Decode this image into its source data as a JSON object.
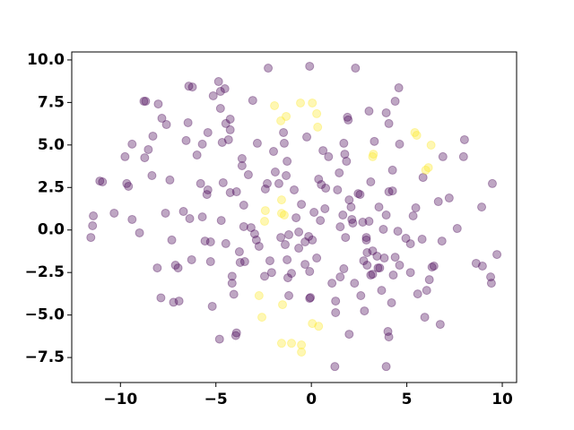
{
  "chart_data": {
    "type": "scatter",
    "xlim": [
      -12.55,
      10.75
    ],
    "ylim": [
      -8.97,
      10.47
    ],
    "xticks": [
      {
        "value": -10,
        "label": "−10"
      },
      {
        "value": -5,
        "label": "−5"
      },
      0,
      5,
      10
    ],
    "yticks": [
      {
        "value": -7.5,
        "label": "−7.5"
      },
      {
        "value": -5,
        "label": "−5.0"
      },
      {
        "value": -2.5,
        "label": "−2.5"
      },
      {
        "value": 0,
        "label": "0.0"
      },
      {
        "value": 2.5,
        "label": "2.5"
      },
      {
        "value": 5,
        "label": "5.0"
      },
      {
        "value": 7.5,
        "label": "7.5"
      },
      {
        "value": 10,
        "label": "10.0"
      }
    ],
    "series": [
      {
        "color": "#440154",
        "x": [
          -11.55,
          -11.46,
          -11.42,
          -11.08,
          -10.94,
          -10.33,
          -9.67,
          -9.58,
          -9.39,
          -9.0,
          -9.76,
          -9.39,
          -8.77,
          -8.68,
          -8.73,
          -8.54,
          -8.35,
          -8.3,
          -8.02,
          -7.83,
          -7.59,
          -8.07,
          -7.88,
          -7.64,
          -7.41,
          -7.31,
          -7.12,
          -6.98,
          -7.22,
          -6.93,
          -6.7,
          -6.46,
          -6.42,
          -6.23,
          -6.56,
          -6.37,
          -6.27,
          -5.99,
          -5.8,
          -5.71,
          -5.71,
          -5.57,
          -5.42,
          -5.47,
          -5.28,
          -5.28,
          -5.42,
          -5.19,
          -5.14,
          -4.86,
          -4.76,
          -4.53,
          -4.76,
          -4.67,
          -4.72,
          -4.62,
          -4.81,
          -4.48,
          -4.48,
          -4.25,
          -4.25,
          -4.34,
          -4.25,
          -4.15,
          -4.15,
          -4.06,
          -3.92,
          -3.92,
          -3.96,
          -3.77,
          -3.73,
          -3.63,
          -3.63,
          -3.54,
          -3.54,
          -3.49,
          -3.3,
          -3.16,
          -3.07,
          -2.97,
          -2.88,
          -2.83,
          -2.74,
          -2.45,
          -2.41,
          -2.31,
          -2.26,
          -2.17,
          -2.08,
          -1.98,
          -1.89,
          -1.7,
          -1.6,
          -1.46,
          -1.42,
          -1.37,
          -1.32,
          -1.27,
          -1.27,
          -1.23,
          -1.18,
          -1.18,
          -1.04,
          -0.9,
          -0.8,
          -0.66,
          -0.66,
          -0.52,
          -0.33,
          -0.33,
          -0.24,
          -0.14,
          -0.09,
          -0.09,
          -0.09,
          -0.05,
          0.05,
          0.14,
          0.28,
          0.38,
          0.47,
          0.52,
          0.61,
          0.71,
          0.75,
          0.9,
          1.08,
          1.27,
          1.23,
          1.27,
          1.37,
          1.46,
          1.51,
          1.51,
          1.65,
          1.7,
          1.7,
          1.75,
          1.79,
          1.84,
          1.89,
          1.93,
          1.98,
          1.98,
          2.08,
          2.12,
          2.17,
          2.26,
          2.31,
          2.45,
          2.55,
          2.59,
          2.69,
          2.74,
          2.78,
          2.88,
          2.88,
          2.92,
          2.92,
          3.02,
          3.02,
          3.11,
          3.11,
          3.21,
          3.21,
          3.3,
          3.44,
          3.49,
          3.54,
          3.58,
          3.68,
          3.77,
          3.82,
          3.92,
          3.92,
          3.92,
          4.01,
          4.06,
          4.06,
          4.06,
          4.2,
          4.25,
          4.25,
          4.29,
          4.39,
          4.39,
          4.53,
          4.58,
          4.62,
          4.62,
          4.95,
          5.19,
          5.19,
          5.33,
          5.47,
          5.57,
          5.8,
          5.85,
          6.04,
          5.94,
          6.18,
          6.32,
          6.42,
          6.65,
          6.75,
          6.84,
          6.89,
          7.22,
          7.64,
          7.97,
          8.02,
          8.63,
          8.96,
          8.92,
          9.39,
          9.43,
          9.48,
          9.72
        ],
        "y": [
          -0.44,
          0.25,
          0.83,
          2.88,
          2.83,
          0.99,
          2.73,
          2.57,
          0.62,
          -0.17,
          4.31,
          5.05,
          7.57,
          7.57,
          4.25,
          4.73,
          3.2,
          5.52,
          7.41,
          6.57,
          6.2,
          -2.23,
          -3.99,
          0.99,
          2.94,
          -0.59,
          -2.07,
          -2.23,
          -4.25,
          -4.18,
          1.09,
          6.31,
          8.46,
          8.41,
          5.26,
          0.67,
          -1.75,
          4.41,
          2.73,
          5.05,
          0.77,
          -0.65,
          2.36,
          2.09,
          -0.7,
          -1.86,
          5.73,
          -4.49,
          7.89,
          8.73,
          8.15,
          8.31,
          7.15,
          5.15,
          0.56,
          2.78,
          -6.42,
          -0.8,
          6.26,
          6.52,
          5.89,
          5.31,
          2.2,
          -2.72,
          -3.13,
          -3.78,
          2.25,
          -6.05,
          -6.21,
          -1.28,
          -1.91,
          3.78,
          4.2,
          1.46,
          0.2,
          -1.86,
          3.25,
          0.14,
          7.62,
          -0.23,
          -0.59,
          5.1,
          -0.96,
          -2.72,
          2.41,
          2.73,
          9.52,
          -1.81,
          -2.5,
          4.62,
          3.41,
          2.73,
          -0.44,
          5.73,
          5.1,
          -0.86,
          3.2,
          4.04,
          -1.75,
          -2.81,
          -3.86,
          -0.28,
          -2.55,
          2.36,
          0.72,
          -0.12,
          -1.07,
          1.51,
          -2.02,
          -0.7,
          5.47,
          -0.38,
          9.63,
          -2.44,
          -4.02,
          -3.97,
          -0.59,
          1.04,
          -1.65,
          2.99,
          0.56,
          2.67,
          4.67,
          1.25,
          2.46,
          4.31,
          -3.13,
          -4.18,
          -8.03,
          -4.86,
          2.36,
          3.36,
          0.19,
          -2.76,
          0.88,
          5.1,
          -2.28,
          4.46,
          -0.44,
          4.04,
          6.63,
          6.47,
          1.77,
          -6.13,
          1.35,
          0.62,
          0.41,
          -3.13,
          9.52,
          2.14,
          2.09,
          -3.86,
          0.46,
          -1.81,
          -4.76,
          -0.44,
          -0.59,
          -1.33,
          -2.07,
          6.99,
          0.51,
          2.83,
          -2.65,
          -1.23,
          -2.6,
          5.21,
          -1.54,
          -2.23,
          1.35,
          -2.23,
          -3.55,
          0.04,
          -1.65,
          0.88,
          -8.03,
          6.89,
          -5.97,
          6.26,
          2.25,
          -6.29,
          -4.28,
          2.3,
          3.52,
          -2.65,
          7.57,
          -1.6,
          -0.07,
          8.36,
          5.05,
          -2.07,
          -0.49,
          -0.81,
          -2.5,
          0.83,
          1.3,
          -3.76,
          -0.54,
          3.09,
          -3.55,
          -5.13,
          -2.92,
          -2.18,
          -2.12,
          1.67,
          -5.55,
          -0.65,
          4.31,
          1.88,
          0.09,
          4.31,
          5.31,
          -1.96,
          -2.12,
          1.35,
          -2.76,
          -3.13,
          2.73,
          -1.44
        ]
      },
      {
        "color": "#fde725",
        "x": [
          -1.93,
          -0.57,
          0.05,
          0.28,
          -1.32,
          -1.6,
          0.33,
          5.42,
          5.52,
          3.25,
          3.21,
          6.27,
          6.13,
          5.99,
          -1.56,
          -2.41,
          -1.56,
          -1.42,
          -2.45,
          -2.74,
          -2.59,
          -1.51,
          -1.56,
          -1.04,
          -0.52,
          -0.52,
          0.05,
          0.38
        ],
        "y": [
          7.31,
          7.47,
          7.47,
          6.84,
          6.68,
          6.42,
          6.05,
          5.73,
          5.57,
          4.46,
          4.31,
          4.99,
          3.67,
          3.52,
          1.77,
          1.14,
          0.98,
          0.88,
          0.51,
          -3.86,
          -5.13,
          -4.39,
          -6.66,
          -6.66,
          -6.76,
          -7.18,
          -5.5,
          -5.66
        ]
      }
    ]
  }
}
